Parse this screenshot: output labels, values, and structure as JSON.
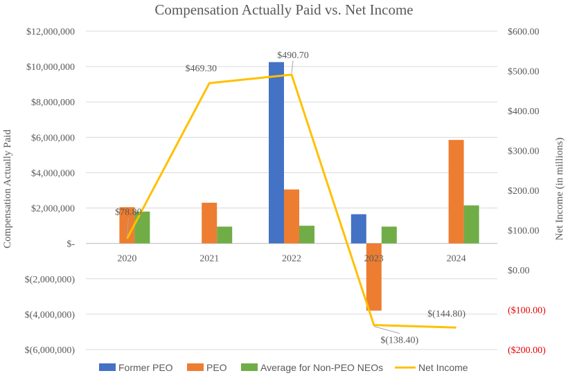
{
  "chart_data": {
    "type": "bar",
    "title": "Compensation Actually Paid vs. Net Income",
    "ylabel": "Compensation Actually Paid",
    "ylabel_right": "Net Income (in millions)",
    "categories": [
      "2020",
      "2021",
      "2022",
      "2023",
      "2024"
    ],
    "ylim": [
      -6000000,
      12000000
    ],
    "ylim_right": [
      -200,
      600
    ],
    "y_ticks": [
      {
        "value": 12000000,
        "label": "$12,000,000"
      },
      {
        "value": 10000000,
        "label": "$10,000,000"
      },
      {
        "value": 8000000,
        "label": "$8,000,000"
      },
      {
        "value": 6000000,
        "label": "$6,000,000"
      },
      {
        "value": 4000000,
        "label": "$4,000,000"
      },
      {
        "value": 2000000,
        "label": "$2,000,000"
      },
      {
        "value": 0,
        "label": "$-"
      },
      {
        "value": -2000000,
        "label": "$(2,000,000)"
      },
      {
        "value": -4000000,
        "label": "$(4,000,000)"
      },
      {
        "value": -6000000,
        "label": "$(6,000,000)"
      }
    ],
    "y_ticks_right": [
      {
        "value": 600,
        "label": "$600.00",
        "color": "#595959"
      },
      {
        "value": 500,
        "label": "$500.00",
        "color": "#595959"
      },
      {
        "value": 400,
        "label": "$400.00",
        "color": "#595959"
      },
      {
        "value": 300,
        "label": "$300.00",
        "color": "#595959"
      },
      {
        "value": 200,
        "label": "$200.00",
        "color": "#595959"
      },
      {
        "value": 100,
        "label": "$100.00",
        "color": "#595959"
      },
      {
        "value": 0,
        "label": "$0.00",
        "color": "#595959"
      },
      {
        "value": -100,
        "label": "($100.00)",
        "color": "#e60000"
      },
      {
        "value": -200,
        "label": "($200.00)",
        "color": "#e60000"
      }
    ],
    "grid": true,
    "legend_position": "bottom",
    "series": [
      {
        "name": "Former PEO",
        "kind": "bar",
        "color": "#4472c4",
        "values": [
          null,
          null,
          10250000,
          1650000,
          null
        ]
      },
      {
        "name": "PEO",
        "kind": "bar",
        "color": "#ed7d31",
        "values": [
          2050000,
          2300000,
          3050000,
          -3800000,
          5850000
        ]
      },
      {
        "name": "Average for Non-PEO NEOs",
        "kind": "bar",
        "color": "#70ad47",
        "values": [
          1800000,
          950000,
          1000000,
          950000,
          2150000
        ]
      },
      {
        "name": "Net Income",
        "kind": "line",
        "color": "#ffc000",
        "axis": "right",
        "values": [
          78.8,
          469.3,
          490.7,
          -138.4,
          -144.8
        ]
      }
    ],
    "data_labels": [
      "$78.80",
      "$469.30",
      "$490.70",
      "$(138.40)",
      "$(144.80)"
    ]
  }
}
